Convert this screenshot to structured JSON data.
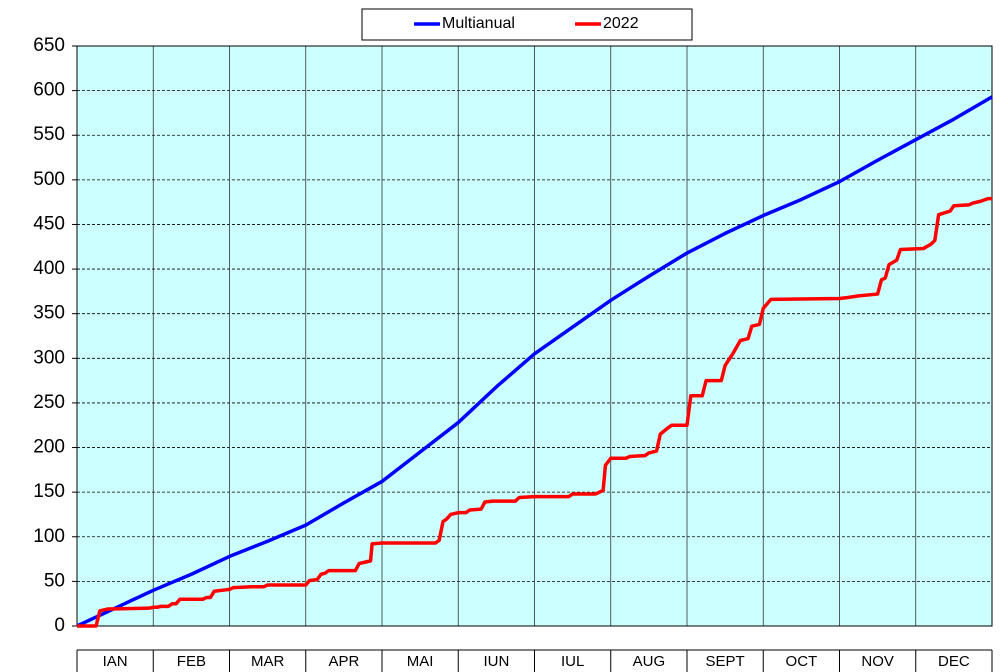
{
  "chart_data": {
    "type": "line",
    "categories": [
      "IAN",
      "FEB",
      "MAR",
      "APR",
      "MAI",
      "IUN",
      "IUL",
      "AUG",
      "SEPT",
      "OCT",
      "NOV",
      "DEC"
    ],
    "xlim": [
      0,
      12
    ],
    "xticks": [
      0,
      1,
      2,
      3,
      4,
      5,
      6,
      7,
      8,
      9,
      10,
      11,
      12
    ],
    "ylim": [
      0,
      650
    ],
    "yticks": [
      0,
      50,
      100,
      150,
      200,
      250,
      300,
      350,
      400,
      450,
      500,
      550,
      600,
      650
    ],
    "grid": true,
    "legend": "top",
    "series": [
      {
        "name": "Multianual",
        "color": "#0000ff",
        "x": [
          0,
          0.25,
          0.5,
          1,
          1.5,
          2,
          2.5,
          3,
          3.5,
          4,
          4.5,
          5,
          5.5,
          6,
          6.5,
          7,
          7.5,
          8,
          8.5,
          9,
          9.5,
          10,
          10.5,
          11,
          11.5,
          12
        ],
        "values": [
          0,
          10,
          20,
          40,
          58,
          78,
          95,
          113,
          138,
          162,
          195,
          228,
          268,
          305,
          335,
          365,
          392,
          418,
          440,
          460,
          478,
          498,
          522,
          545,
          568,
          593
        ]
      },
      {
        "name": "2022",
        "color": "#ff0000",
        "x": [
          0,
          0.25,
          0.3,
          0.4,
          0.95,
          1.0,
          1.05,
          1.1,
          1.2,
          1.25,
          1.3,
          1.35,
          1.65,
          1.7,
          1.75,
          1.8,
          1.9,
          2.0,
          2.05,
          2.3,
          2.45,
          2.5,
          3.0,
          3.05,
          3.15,
          3.2,
          3.25,
          3.3,
          3.65,
          3.7,
          3.8,
          3.85,
          3.87,
          4.0,
          4.7,
          4.75,
          4.8,
          4.85,
          4.9,
          5.0,
          5.1,
          5.15,
          5.3,
          5.35,
          5.45,
          5.75,
          5.8,
          6.0,
          6.45,
          6.5,
          6.8,
          6.85,
          6.9,
          6.93,
          7.0,
          7.2,
          7.25,
          7.45,
          7.5,
          7.6,
          7.65,
          7.75,
          7.8,
          8.0,
          8.05,
          8.2,
          8.25,
          8.45,
          8.5,
          8.6,
          8.7,
          8.8,
          8.85,
          8.95,
          9.0,
          9.1,
          10.0,
          10.1,
          10.25,
          10.5,
          10.55,
          10.6,
          10.65,
          10.75,
          10.8,
          11.1,
          11.2,
          11.25,
          11.3,
          11.45,
          11.5,
          11.7,
          11.75,
          11.85,
          11.95,
          12.0
        ],
        "values": [
          0,
          0,
          17,
          19,
          20,
          21,
          21,
          22,
          22,
          25,
          25,
          30,
          30,
          32,
          32,
          39,
          40,
          41,
          43,
          44,
          44,
          46,
          46,
          51,
          52,
          58,
          59,
          62,
          62,
          70,
          72,
          73,
          92,
          93,
          93,
          96,
          117,
          120,
          125,
          127,
          127,
          130,
          131,
          139,
          140,
          140,
          144,
          145,
          145,
          148,
          148,
          150,
          152,
          180,
          188,
          188,
          190,
          191,
          194,
          196,
          215,
          222,
          225,
          225,
          258,
          258,
          275,
          275,
          292,
          305,
          320,
          322,
          336,
          338,
          356,
          366,
          367,
          368,
          370,
          372,
          388,
          390,
          405,
          410,
          422,
          423,
          428,
          432,
          461,
          465,
          471,
          472,
          474,
          476,
          479,
          479
        ]
      }
    ]
  }
}
